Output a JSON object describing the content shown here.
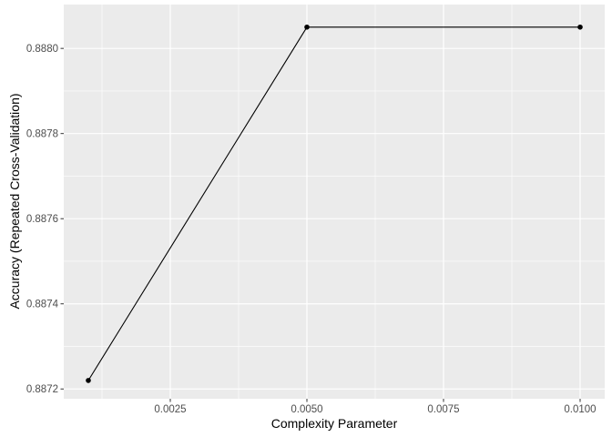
{
  "chart_data": {
    "type": "line",
    "title": "",
    "xlabel": "Complexity Parameter",
    "ylabel": "Accuracy (Repeated Cross-Validation)",
    "xlim": [
      0.00055,
      0.01045
    ],
    "ylim": [
      0.887177,
      0.888103
    ],
    "x_major_ticks": [
      0.0025,
      0.005,
      0.0075,
      0.01
    ],
    "x_tick_labels": [
      "0.0025",
      "0.0050",
      "0.0075",
      "0.0100"
    ],
    "x_minor_ticks": [
      0.00125,
      0.00375,
      0.00625,
      0.00875
    ],
    "y_major_ticks": [
      0.8872,
      0.8874,
      0.8876,
      0.8878,
      0.888
    ],
    "y_tick_labels": [
      "0.8872",
      "0.8874",
      "0.8876",
      "0.8878",
      "0.8880"
    ],
    "y_minor_ticks": [
      0.8873,
      0.8875,
      0.8877,
      0.8879
    ],
    "grid": true,
    "legend": "none",
    "panel_color": "#ebebeb",
    "grid_color": "#ffffff",
    "line_color": "#000000",
    "x": [
      0.001,
      0.005,
      0.01
    ],
    "y": [
      0.88722,
      0.88805,
      0.88805
    ]
  }
}
